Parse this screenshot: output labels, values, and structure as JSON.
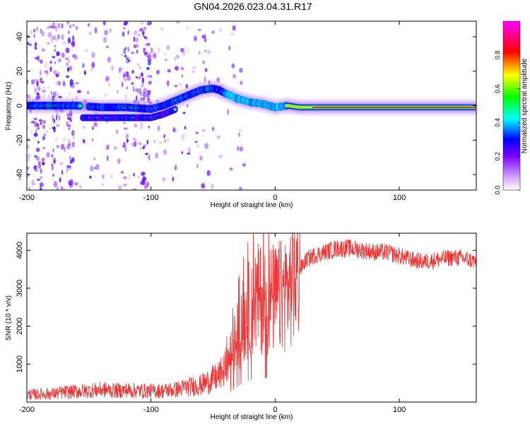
{
  "title": "GN04.2026.023.04.31.R17",
  "chart_data": [
    {
      "type": "heatmap",
      "xlabel": "Height of straight line (km)",
      "ylabel": "Frequency (Hz)",
      "xlim": [
        -200,
        162
      ],
      "ylim": [
        -49,
        49
      ],
      "xticks": [
        -200,
        -100,
        0,
        100
      ],
      "yticks": [
        -40,
        -20,
        0,
        20,
        40
      ],
      "colorbar": {
        "label": "Normalized spectral amplitude",
        "range": [
          0,
          1
        ],
        "ticks": [
          0.0,
          0.2,
          0.4,
          0.6,
          0.8
        ]
      },
      "ridge": {
        "x": [
          -200,
          -180,
          -160,
          -140,
          -120,
          -100,
          -90,
          -80,
          -70,
          -60,
          -50,
          -45,
          -40,
          -30,
          -20,
          -10,
          0,
          10,
          20,
          50,
          80,
          100,
          130,
          162
        ],
        "freq": [
          0,
          0,
          0,
          -1,
          -1,
          -2,
          0,
          3,
          6,
          9,
          10,
          9,
          7,
          4,
          2,
          1,
          -1,
          0,
          -1,
          -1,
          -1,
          -1,
          -1,
          -1
        ]
      },
      "lower_branch": {
        "x": [
          -155,
          -140,
          -120,
          -100,
          -90,
          -80
        ],
        "freq": [
          -7,
          -7,
          -7,
          -7,
          -5,
          -2
        ]
      }
    },
    {
      "type": "line",
      "xlabel": "Height of straight line (km)",
      "ylabel": "SNR (10 * v/v)",
      "xlim": [
        -200,
        162
      ],
      "ylim": [
        0,
        4450
      ],
      "xticks": [
        -200,
        -100,
        0,
        100
      ],
      "yticks": [
        1000,
        2000,
        3000,
        4000
      ],
      "series": [
        {
          "name": "SNR",
          "color": "#ee3333",
          "x": [
            -200,
            -190,
            -180,
            -170,
            -160,
            -150,
            -140,
            -130,
            -120,
            -110,
            -100,
            -90,
            -80,
            -70,
            -60,
            -50,
            -45,
            -40,
            -35,
            -33,
            -30,
            -25,
            -20,
            -15,
            -10,
            -5,
            0,
            5,
            10,
            15,
            20,
            25,
            30,
            40,
            50,
            60,
            70,
            80,
            90,
            100,
            110,
            120,
            130,
            140,
            150,
            162
          ],
          "values": [
            200,
            210,
            220,
            260,
            280,
            300,
            330,
            300,
            310,
            300,
            290,
            300,
            330,
            400,
            450,
            600,
            700,
            900,
            1300,
            1500,
            1800,
            2200,
            2500,
            2700,
            2750,
            2750,
            2700,
            2800,
            3000,
            3200,
            3500,
            3750,
            3850,
            3950,
            4050,
            4050,
            4000,
            3950,
            3950,
            3850,
            3750,
            3700,
            3750,
            3800,
            3800,
            3700
          ]
        }
      ]
    }
  ]
}
